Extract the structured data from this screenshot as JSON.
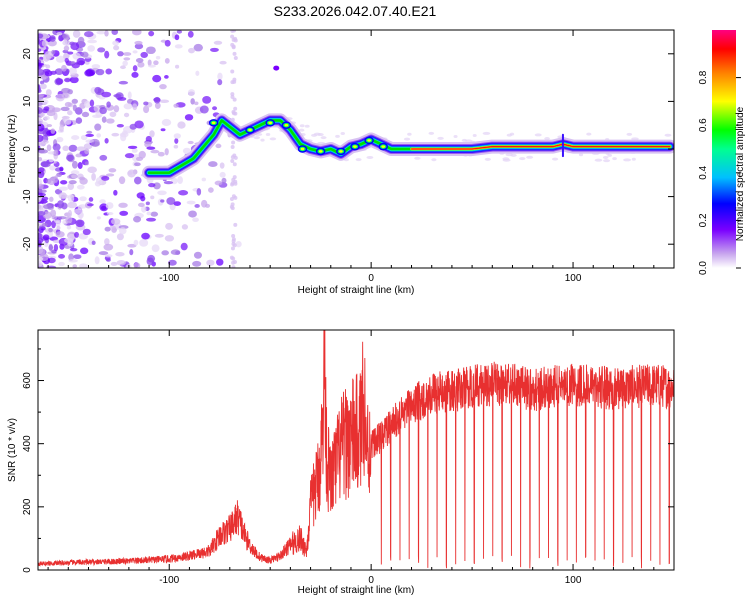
{
  "title": "S233.2026.042.07.40.E21",
  "chart_data": [
    {
      "type": "heatmap",
      "name": "spectrogram",
      "xlabel": "Height of straight line (km)",
      "ylabel": "Frequency (Hz)",
      "xlim": [
        -165,
        150
      ],
      "ylim": [
        -25,
        25
      ],
      "xticks": [
        -100,
        0,
        100
      ],
      "yticks": [
        -20,
        -10,
        0,
        10,
        20
      ],
      "colorbar": {
        "label": "Normalized spectral amplitude",
        "range": [
          0,
          1
        ],
        "ticks": [
          "0.0",
          "0.2",
          "0.4",
          "0.6",
          "0.8"
        ],
        "colors": [
          "#ffffff",
          "#c8a6ee",
          "#7a00ff",
          "#0000ff",
          "#00c0ff",
          "#00ff90",
          "#00ff00",
          "#ffff00",
          "#ff8000",
          "#ff0000",
          "#ff0080"
        ]
      },
      "ridge": {
        "x": [
          -110,
          -100,
          -92,
          -88,
          -82,
          -78,
          -74,
          -65,
          -60,
          -55,
          -50,
          -45,
          -40,
          -35,
          -30,
          -25,
          -20,
          -15,
          -10,
          -5,
          0,
          5,
          10,
          20,
          30,
          40,
          50,
          60,
          70,
          80,
          90,
          95,
          100,
          110,
          120,
          130,
          140,
          148
        ],
        "y": [
          -5,
          -5,
          -3,
          -2,
          1,
          3,
          6,
          3,
          4,
          5,
          6,
          6,
          4,
          1,
          0,
          -0.5,
          0,
          -1,
          0.5,
          1,
          2,
          1,
          0,
          0,
          0,
          0,
          0,
          0.5,
          0.5,
          0.5,
          0.5,
          1,
          0.5,
          0.5,
          0.5,
          0.5,
          0.5,
          0.5
        ],
        "amplitude": [
          0.25,
          0.3,
          0.35,
          0.3,
          0.35,
          0.45,
          0.5,
          0.3,
          0.35,
          0.45,
          0.5,
          0.55,
          0.45,
          0.4,
          0.5,
          0.5,
          0.5,
          0.55,
          0.55,
          0.55,
          0.6,
          0.6,
          0.65,
          0.75,
          0.8,
          0.8,
          0.75,
          0.8,
          0.85,
          0.85,
          0.9,
          0.85,
          0.9,
          0.9,
          0.9,
          0.9,
          0.9,
          0.9
        ]
      }
    },
    {
      "type": "line",
      "name": "snr",
      "xlabel": "Height of straight line (km)",
      "ylabel": "SNR (10 * v/v)",
      "xlim": [
        -165,
        150
      ],
      "ylim": [
        0,
        760
      ],
      "xticks": [
        -100,
        0,
        100
      ],
      "yticks": [
        0,
        200,
        400,
        600
      ],
      "color": "#e83030",
      "x": [
        -165,
        -140,
        -120,
        -100,
        -90,
        -80,
        -75,
        -70,
        -66,
        -62,
        -58,
        -55,
        -50,
        -45,
        -40,
        -35,
        -32,
        -30,
        -26,
        -24,
        -23,
        -22,
        -20,
        -15,
        -10,
        -5,
        -4,
        -2,
        0,
        5,
        10,
        20,
        30,
        40,
        50,
        60,
        70,
        80,
        90,
        100,
        110,
        120,
        130,
        140,
        150
      ],
      "y": [
        20,
        25,
        28,
        35,
        45,
        60,
        110,
        130,
        170,
        100,
        60,
        40,
        30,
        45,
        80,
        100,
        60,
        200,
        300,
        430,
        760,
        350,
        280,
        380,
        420,
        440,
        590,
        380,
        400,
        420,
        460,
        520,
        560,
        565,
        580,
        590,
        585,
        570,
        580,
        590,
        580,
        575,
        580,
        585,
        580
      ]
    }
  ]
}
